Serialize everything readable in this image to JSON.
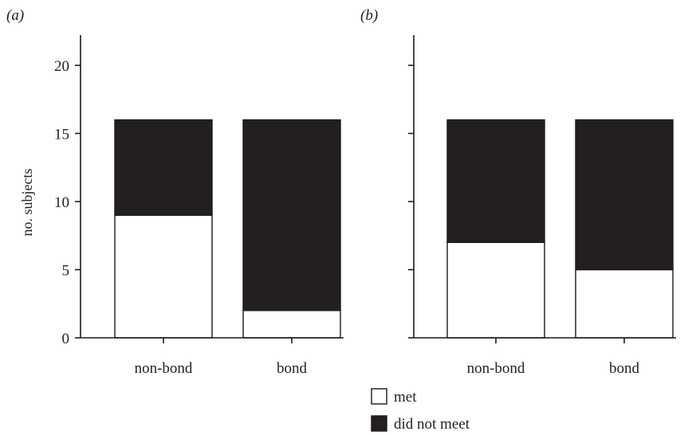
{
  "legend": [
    {
      "label": "met",
      "color": "#ffffff"
    },
    {
      "label": "did not meet",
      "color": "#231f20"
    }
  ],
  "chart_data": [
    {
      "type": "bar",
      "stacked": true,
      "panel": "(a)",
      "ylabel": "no. subjects",
      "ylim": [
        0,
        22
      ],
      "yticks": [
        0,
        5,
        10,
        15,
        20
      ],
      "categories": [
        "non-bond",
        "bond"
      ],
      "series": [
        {
          "name": "met",
          "values": [
            9,
            2
          ],
          "color": "#ffffff"
        },
        {
          "name": "did not meet",
          "values": [
            7,
            14
          ],
          "color": "#231f20"
        }
      ]
    },
    {
      "type": "bar",
      "stacked": true,
      "panel": "(b)",
      "ylabel": "",
      "ylim": [
        0,
        22
      ],
      "yticks": [
        0,
        5,
        10,
        15,
        20
      ],
      "categories": [
        "non-bond",
        "bond"
      ],
      "series": [
        {
          "name": "met",
          "values": [
            7,
            5
          ],
          "color": "#ffffff"
        },
        {
          "name": "did not meet",
          "values": [
            9,
            11
          ],
          "color": "#231f20"
        }
      ]
    }
  ]
}
